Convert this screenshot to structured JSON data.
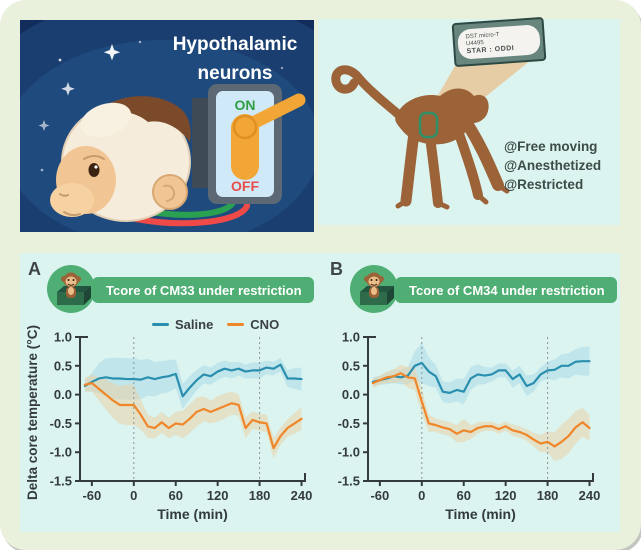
{
  "hero": {
    "title_lines": [
      "Hypothalamic",
      "neurons"
    ],
    "switch_on": "ON",
    "switch_off": "OFF",
    "colors": {
      "on": "#2f9e44",
      "off": "#e84d4a",
      "toggle": "#f2a636",
      "wire_green": "#2aa150",
      "wire_red": "#ef4a47"
    }
  },
  "telemetry": {
    "device_lines": [
      "DST micro-T",
      "U4495",
      "STAR : ODDI"
    ],
    "conditions": [
      "@Free moving",
      "@Anesthetized",
      "@Restricted"
    ]
  },
  "panels": [
    {
      "letter": "A",
      "badge_label": "Tcore of CM33 under restriction"
    },
    {
      "letter": "B",
      "badge_label": "Tcore of CM34 under restriction"
    }
  ],
  "theme": {
    "card_bg": "#e9f0db",
    "panel_cyan": "#dbf4f0",
    "badge_green": "#4fae73",
    "axis_color": "#343b3d"
  },
  "chart_data": [
    {
      "type": "line",
      "title": "Tcore of CM33 under restriction",
      "xlabel": "Time (min)",
      "ylabel": "Delta core temperature (°C)",
      "xlim": [
        -77,
        245
      ],
      "ylim": [
        -1.5,
        1.0
      ],
      "xticks": [
        "-60",
        "0",
        "60",
        "120",
        "180",
        "240"
      ],
      "yticks": [
        "1.0",
        "0.5",
        "0.0",
        "-0.5",
        "-1.0",
        "-1.5"
      ],
      "vlines": [
        0,
        180
      ],
      "legend": [
        "Saline",
        "CNO"
      ],
      "x": [
        -70,
        -60,
        -50,
        -40,
        -30,
        -20,
        -10,
        0,
        10,
        20,
        30,
        40,
        50,
        60,
        70,
        80,
        90,
        100,
        110,
        120,
        130,
        140,
        150,
        160,
        170,
        180,
        190,
        200,
        210,
        220,
        230,
        240
      ],
      "series": [
        {
          "name": "Saline",
          "color": "#2a8fae",
          "band_color": "#a9dbe9",
          "values": [
            0.15,
            0.22,
            0.28,
            0.3,
            0.28,
            0.28,
            0.27,
            0.27,
            0.26,
            0.3,
            0.27,
            0.3,
            0.32,
            0.36,
            -0.03,
            0.12,
            0.25,
            0.35,
            0.32,
            0.4,
            0.45,
            0.42,
            0.45,
            0.4,
            0.42,
            0.42,
            0.47,
            0.45,
            0.52,
            0.28,
            0.28,
            0.27
          ],
          "sem": [
            0.1,
            0.16,
            0.26,
            0.33,
            0.36,
            0.36,
            0.36,
            0.36,
            0.34,
            0.32,
            0.3,
            0.28,
            0.28,
            0.25,
            0.22,
            0.2,
            0.18,
            0.16,
            0.15,
            0.15,
            0.14,
            0.14,
            0.12,
            0.12,
            0.14,
            0.14,
            0.12,
            0.12,
            0.12,
            0.15,
            0.18,
            0.2
          ]
        },
        {
          "name": "CNO",
          "color": "#f0862a",
          "band_color": "#e9d2a6",
          "values": [
            0.17,
            0.2,
            0.1,
            0.0,
            -0.1,
            -0.18,
            -0.18,
            -0.18,
            -0.35,
            -0.55,
            -0.58,
            -0.48,
            -0.58,
            -0.5,
            -0.52,
            -0.42,
            -0.3,
            -0.25,
            -0.3,
            -0.25,
            -0.2,
            -0.15,
            -0.18,
            -0.58,
            -0.44,
            -0.48,
            -0.5,
            -0.93,
            -0.72,
            -0.58,
            -0.5,
            -0.42
          ],
          "sem": [
            0.12,
            0.15,
            0.2,
            0.26,
            0.3,
            0.33,
            0.35,
            0.35,
            0.26,
            0.2,
            0.18,
            0.18,
            0.18,
            0.2,
            0.24,
            0.25,
            0.25,
            0.22,
            0.2,
            0.22,
            0.22,
            0.2,
            0.18,
            0.18,
            0.15,
            0.15,
            0.15,
            0.18,
            0.15,
            0.15,
            0.18,
            0.2
          ]
        }
      ]
    },
    {
      "type": "line",
      "title": "Tcore of CM34 under restriction",
      "xlabel": "Time (min)",
      "ylabel": "",
      "xlim": [
        -77,
        245
      ],
      "ylim": [
        -1.5,
        1.0
      ],
      "xticks": [
        "-60",
        "0",
        "60",
        "120",
        "180",
        "240"
      ],
      "yticks": [
        "1.0",
        "0.5",
        "0.0",
        "-0.5",
        "-1.0",
        "-1.5"
      ],
      "vlines": [
        0,
        180
      ],
      "legend": [],
      "x": [
        -70,
        -60,
        -50,
        -40,
        -30,
        -20,
        -10,
        0,
        10,
        20,
        30,
        40,
        50,
        60,
        70,
        80,
        90,
        100,
        110,
        120,
        130,
        140,
        150,
        160,
        170,
        180,
        190,
        200,
        210,
        220,
        230,
        240
      ],
      "series": [
        {
          "name": "Saline",
          "color": "#2a8fae",
          "band_color": "#a9dbe9",
          "values": [
            0.22,
            0.25,
            0.28,
            0.32,
            0.3,
            0.33,
            0.5,
            0.55,
            0.4,
            0.32,
            0.05,
            0.03,
            0.08,
            0.05,
            0.28,
            0.35,
            0.33,
            0.35,
            0.42,
            0.42,
            0.27,
            0.35,
            0.15,
            0.2,
            0.35,
            0.42,
            0.43,
            0.5,
            0.5,
            0.57,
            0.58,
            0.58
          ],
          "sem": [
            0.08,
            0.08,
            0.1,
            0.12,
            0.12,
            0.15,
            0.25,
            0.35,
            0.25,
            0.2,
            0.18,
            0.18,
            0.2,
            0.22,
            0.2,
            0.18,
            0.15,
            0.12,
            0.12,
            0.12,
            0.15,
            0.15,
            0.18,
            0.15,
            0.12,
            0.15,
            0.18,
            0.2,
            0.22,
            0.22,
            0.25,
            0.25
          ]
        },
        {
          "name": "CNO",
          "color": "#f0862a",
          "band_color": "#e9d2a6",
          "values": [
            0.2,
            0.25,
            0.3,
            0.32,
            0.37,
            0.3,
            0.28,
            -0.12,
            -0.5,
            -0.53,
            -0.57,
            -0.6,
            -0.68,
            -0.62,
            -0.65,
            -0.58,
            -0.55,
            -0.55,
            -0.6,
            -0.55,
            -0.62,
            -0.65,
            -0.7,
            -0.78,
            -0.85,
            -0.82,
            -0.9,
            -0.82,
            -0.72,
            -0.57,
            -0.48,
            -0.58
          ],
          "sem": [
            0.08,
            0.08,
            0.1,
            0.12,
            0.15,
            0.18,
            0.2,
            0.22,
            0.15,
            0.12,
            0.12,
            0.12,
            0.15,
            0.2,
            0.12,
            0.1,
            0.08,
            0.08,
            0.08,
            0.08,
            0.1,
            0.1,
            0.1,
            0.12,
            0.15,
            0.18,
            0.25,
            0.3,
            0.3,
            0.28,
            0.25,
            0.22
          ]
        }
      ]
    }
  ]
}
